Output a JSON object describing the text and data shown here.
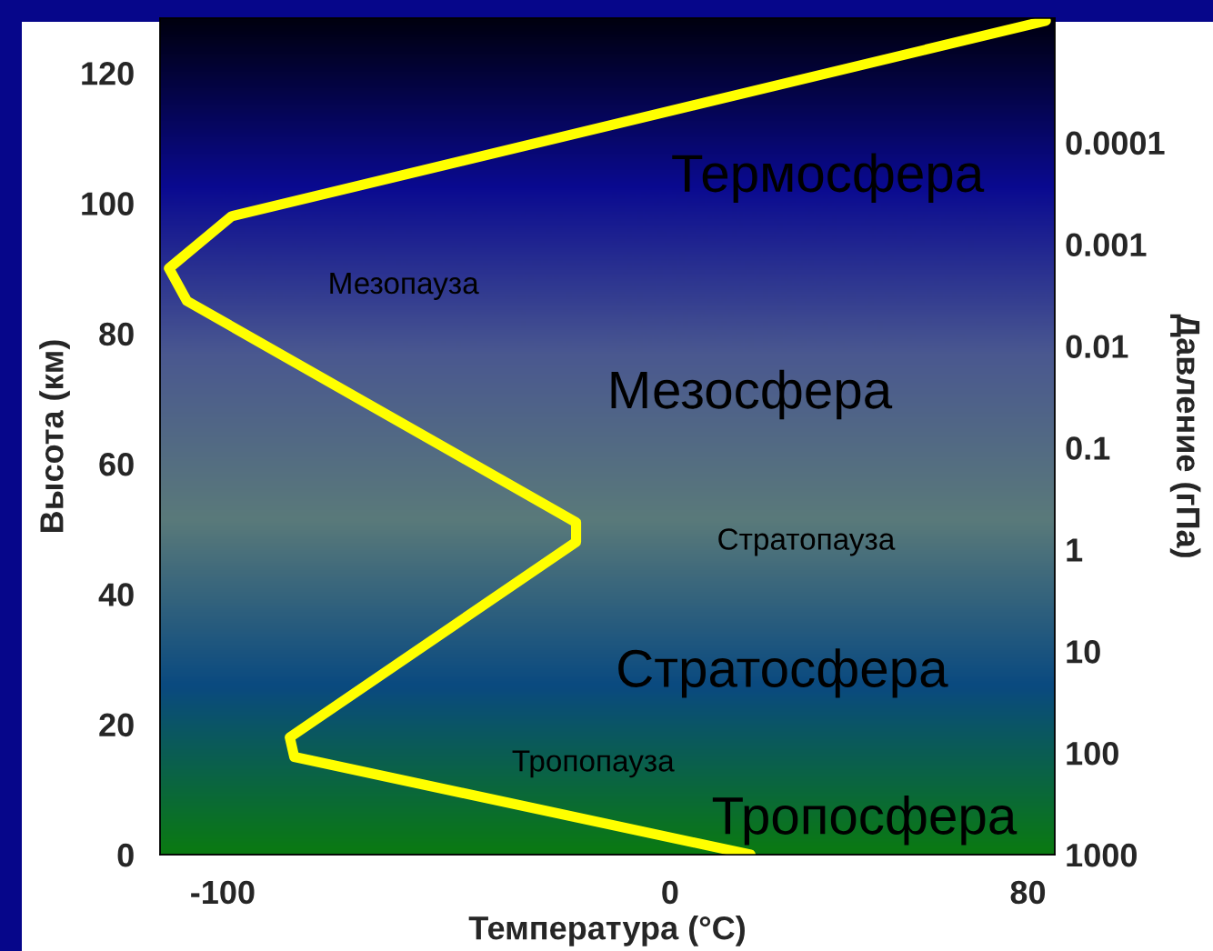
{
  "chart_data": {
    "type": "line",
    "xlabel": "Температура (°C)",
    "ylabel": "Высота (км)",
    "y2label": "Давление (гПа)",
    "x": [
      18,
      -84,
      -85,
      -21,
      -21,
      -108,
      -112,
      -98,
      84
    ],
    "series": [
      {
        "color": "#ffff00",
        "values": [
          0,
          15,
          18,
          48,
          51,
          85,
          90,
          98,
          128
        ],
        "line_style": "solid",
        "marker": "none"
      }
    ],
    "xlim": [
      -114,
      86
    ],
    "xticks": [
      -100,
      0,
      80
    ],
    "ylim": [
      0,
      128.4
    ],
    "yticks": [
      0,
      20,
      40,
      60,
      80,
      100,
      120
    ],
    "y2lim": [
      1000,
      6e-06
    ],
    "y2ticks": [
      1000,
      100,
      10,
      1,
      0.1,
      0.01,
      0.001,
      0.0001
    ],
    "log": "y2",
    "grid": false,
    "legend": false,
    "annotations": [
      "Термосфера",
      "Мезопауза",
      "Мезосфера",
      "Стратопауза",
      "Стратосфера",
      "Тропопауза",
      "Тропосфера"
    ]
  }
}
